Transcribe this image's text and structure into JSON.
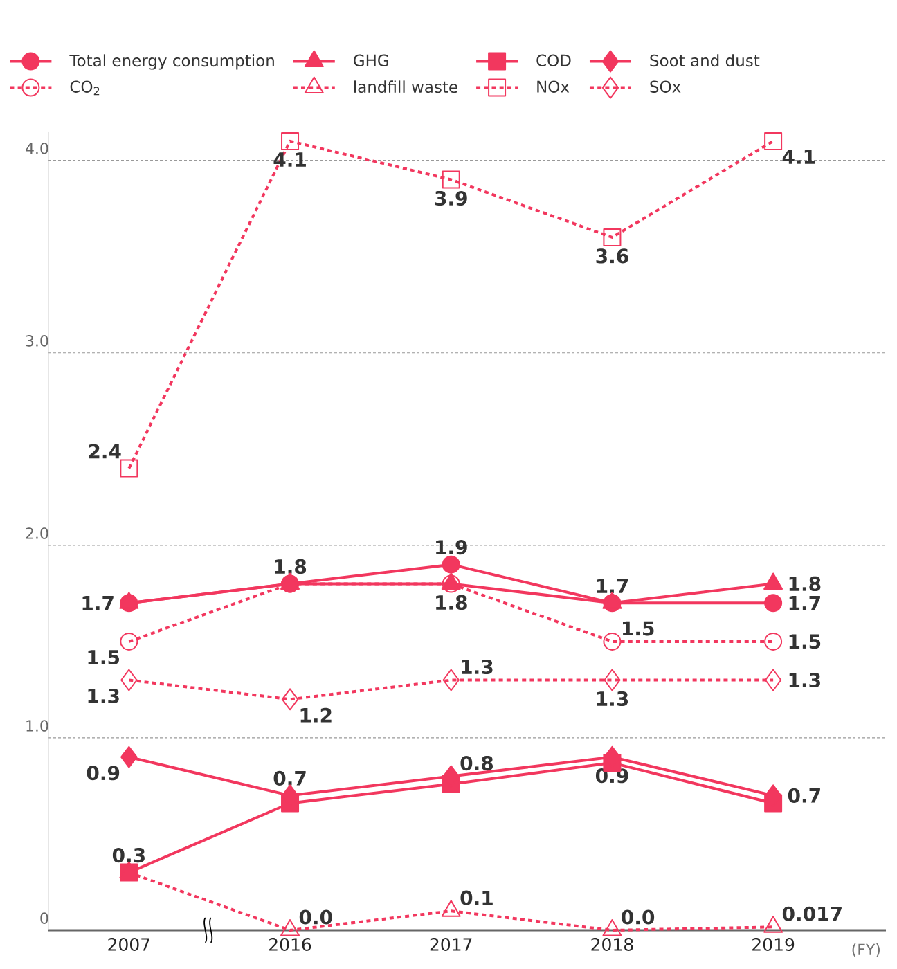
{
  "chart_data": {
    "type": "line",
    "xlabel": "(FY)",
    "categories": [
      "2007",
      "2016",
      "2017",
      "2018",
      "2019"
    ],
    "ylim": [
      0,
      4.15
    ],
    "yticks": [
      0,
      {
        "value": 1,
        "label": "1.0"
      },
      {
        "value": 2,
        "label": "2.0"
      },
      {
        "value": 3,
        "label": "3.0"
      },
      {
        "value": 4,
        "label": "4.0"
      }
    ],
    "grid": "y",
    "legend": "top left",
    "series": [
      {
        "name": "Total energy consumption",
        "color": "#f2375e",
        "marker": "circle",
        "line_style": "solid",
        "values": [
          1.7,
          1.8,
          1.9,
          1.7,
          1.7
        ],
        "value_labels": [
          null,
          "1.8",
          "1.9",
          "1.7",
          "1.7"
        ]
      },
      {
        "name": "GHG",
        "color": "#f2375e",
        "marker": "triangle",
        "line_style": "solid",
        "values": [
          1.7,
          1.8,
          1.8,
          1.7,
          1.8
        ],
        "value_labels": [
          "1.7",
          null,
          "1.8",
          null,
          "1.8"
        ]
      },
      {
        "name": "COD",
        "color": "#f2375e",
        "marker": "square",
        "line_style": "solid",
        "values": [
          0.3,
          0.66,
          0.76,
          0.87,
          0.66
        ],
        "value_labels": [
          "0.3",
          null,
          null,
          null,
          null
        ]
      },
      {
        "name": "Soot and dust",
        "color": "#f2375e",
        "marker": "diamond",
        "line_style": "solid",
        "values": [
          0.9,
          0.7,
          0.8,
          0.9,
          0.7
        ],
        "value_labels": [
          "0.9",
          "0.7",
          "0.8",
          "0.9",
          "0.7"
        ]
      },
      {
        "name": "CO$_{2}$",
        "color": "#f2375e",
        "marker": "circle",
        "line_style": "dotted",
        "values": [
          1.5,
          1.8,
          1.8,
          1.5,
          1.5
        ],
        "value_labels": [
          "1.5",
          null,
          null,
          "1.5",
          "1.5"
        ]
      },
      {
        "name": "landfill waste",
        "color": "#f2375e",
        "marker": "triangle",
        "line_style": "dotted",
        "values": [
          0.3,
          0,
          0.1,
          0,
          0.017
        ],
        "value_labels": [
          null,
          "0.0",
          "0.1",
          "0.0",
          "0.017"
        ]
      },
      {
        "name": "NOx",
        "color": "#f2375e",
        "marker": "square",
        "line_style": "dotted",
        "values": [
          2.4,
          4.1,
          3.9,
          3.6,
          4.1
        ],
        "value_labels": [
          "2.4",
          "4.1",
          "3.9",
          "3.6",
          "4.1"
        ]
      },
      {
        "name": "SOx",
        "color": "#f2375e",
        "marker": "diamond",
        "line_style": "dotted",
        "values": [
          1.3,
          1.2,
          1.3,
          1.3,
          1.3
        ],
        "value_labels": [
          "1.3",
          "1.2",
          "1.3",
          "1.3",
          "1.3"
        ]
      }
    ]
  }
}
